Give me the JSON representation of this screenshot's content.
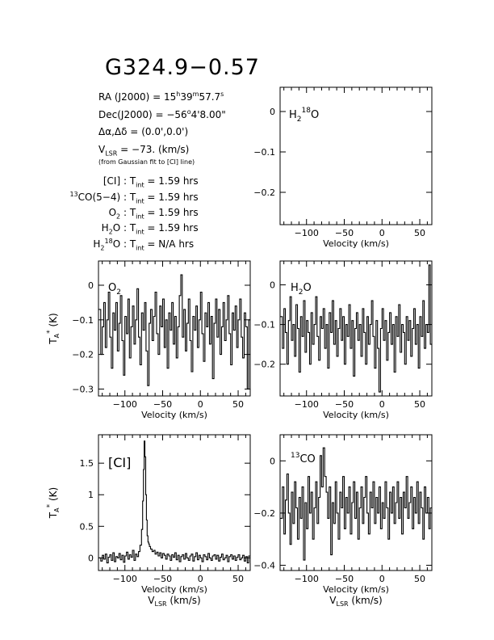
{
  "title": "G324.9−0.57",
  "info": {
    "ra_label": "RA (J2000) =",
    "ra_h": "15",
    "ra_m": "39",
    "ra_s": "57.7",
    "dec_label": "Dec(J2000) =",
    "dec_deg": "−56",
    "dec_rest": "4'8.00\"",
    "offset_label": "Δα,Δδ =",
    "offset_value": "(0.0',0.0')",
    "vlsr_label": "V",
    "vlsr_sub": "LSR",
    "vlsr_value": "= −73. (km/s)",
    "vlsr_note": "(from Gaussian fit to [CI] line)",
    "tint_rows": [
      {
        "pre": "",
        "sup": "",
        "name": "[CI]",
        "sub": "",
        "post": "",
        "value": "1.59 hrs"
      },
      {
        "pre": "",
        "sup": "13",
        "name": "CO(5−4)",
        "sub": "",
        "post": "",
        "value": "1.59 hrs"
      },
      {
        "pre": "O",
        "sup": "",
        "name": "",
        "sub": "2",
        "post": "",
        "value": "1.59 hrs"
      },
      {
        "pre": "H",
        "sup": "",
        "name": "",
        "sub": "2",
        "post": "O",
        "value": "1.59 hrs"
      },
      {
        "pre": "H",
        "sup": "18",
        "name": "",
        "sub": "2",
        "post": "O",
        "value": "N/A hrs"
      }
    ],
    "tint_label": "T",
    "tint_sub": "int",
    "tint_eq": "="
  },
  "axis_text": {
    "xlabel": "Velocity (km/s)",
    "xlabel2": "V",
    "xlabel2_sub": "LSR",
    "xlabel2_rest": " (km/s)",
    "ylabel": "T",
    "ylabel_sub": "A",
    "ylabel_sup": "*",
    "ylabel_rest": " (K)"
  },
  "chart_data": [
    {
      "id": "h218o",
      "type": "line",
      "label": "H218O",
      "label_parts": {
        "a": "H",
        "sub": "2",
        "sup": "18",
        "b": "O"
      },
      "xlim": [
        -135,
        66
      ],
      "ylim": [
        -0.28,
        0.06
      ],
      "xticks": [
        -100,
        -50,
        0,
        50
      ],
      "yticks": [
        0,
        -0.1,
        -0.2
      ],
      "yticklabels": [
        "0",
        "−0.1",
        "−0.2"
      ],
      "show_ylabel": false,
      "show_vlsr": false,
      "x": [],
      "y": []
    },
    {
      "id": "o2",
      "type": "line",
      "label": "O2",
      "label_parts": {
        "a": "O",
        "sub": "2",
        "sup": "",
        "b": ""
      },
      "xlim": [
        -135,
        66
      ],
      "ylim": [
        -0.32,
        0.07
      ],
      "xticks": [
        -100,
        -50,
        0,
        50
      ],
      "yticks": [
        0,
        -0.1,
        -0.2,
        -0.3
      ],
      "yticklabels": [
        "0",
        "−0.1",
        "−0.2",
        "−0.3"
      ],
      "show_ylabel": true,
      "show_vlsr": false,
      "x": [
        -133,
        -131,
        -129,
        -127,
        -125,
        -123,
        -121,
        -119,
        -117,
        -115,
        -113,
        -111,
        -109,
        -107,
        -105,
        -103,
        -101,
        -99,
        -97,
        -95,
        -93,
        -91,
        -89,
        -87,
        -85,
        -83,
        -81,
        -79,
        -77,
        -75,
        -73,
        -71,
        -69,
        -67,
        -65,
        -63,
        -61,
        -59,
        -57,
        -55,
        -53,
        -51,
        -49,
        -47,
        -45,
        -43,
        -41,
        -39,
        -37,
        -35,
        -33,
        -31,
        -29,
        -27,
        -25,
        -23,
        -21,
        -19,
        -17,
        -15,
        -13,
        -11,
        -9,
        -7,
        -5,
        -3,
        -1,
        1,
        3,
        5,
        7,
        9,
        11,
        13,
        15,
        17,
        19,
        21,
        23,
        25,
        27,
        29,
        31,
        33,
        35,
        37,
        39,
        41,
        43,
        45,
        47,
        49,
        51,
        53,
        55,
        57,
        59,
        61,
        63,
        65
      ],
      "y": [
        -0.07,
        -0.2,
        -0.12,
        -0.05,
        -0.18,
        -0.1,
        -0.02,
        -0.15,
        -0.24,
        -0.08,
        -0.13,
        -0.05,
        -0.19,
        -0.11,
        -0.03,
        -0.16,
        -0.26,
        -0.09,
        -0.14,
        -0.04,
        -0.21,
        -0.12,
        -0.06,
        -0.17,
        -0.1,
        -0.01,
        -0.15,
        -0.23,
        -0.08,
        -0.13,
        -0.05,
        -0.19,
        -0.29,
        -0.11,
        -0.07,
        -0.16,
        -0.09,
        -0.02,
        -0.14,
        -0.2,
        -0.06,
        -0.12,
        -0.04,
        -0.18,
        -0.1,
        -0.24,
        -0.08,
        -0.13,
        -0.05,
        -0.17,
        -0.09,
        -0.21,
        -0.12,
        -0.03,
        0.03,
        -0.15,
        -0.07,
        -0.19,
        -0.11,
        -0.04,
        -0.16,
        -0.25,
        -0.09,
        -0.13,
        -0.06,
        -0.18,
        -0.1,
        -0.02,
        -0.14,
        -0.22,
        -0.08,
        -0.12,
        -0.05,
        -0.17,
        -0.09,
        -0.27,
        -0.11,
        -0.04,
        -0.15,
        -0.07,
        -0.2,
        -0.12,
        -0.05,
        -0.16,
        -0.1,
        -0.03,
        -0.14,
        -0.23,
        -0.08,
        -0.13,
        -0.06,
        -0.18,
        -0.1,
        -0.04,
        -0.15,
        -0.21,
        -0.08,
        -0.12,
        -0.3,
        -0.1
      ]
    },
    {
      "id": "h2o",
      "type": "line",
      "label": "H2O",
      "label_parts": {
        "a": "H",
        "sub": "2",
        "sup": "",
        "b": "O"
      },
      "xlim": [
        -135,
        66
      ],
      "ylim": [
        -0.28,
        0.06
      ],
      "xticks": [
        -100,
        -50,
        0,
        50
      ],
      "yticks": [
        0,
        -0.1,
        -0.2
      ],
      "yticklabels": [
        "0",
        "−0.1",
        "−0.2"
      ],
      "show_ylabel": false,
      "show_vlsr": false,
      "x": [
        -133,
        -131,
        -129,
        -127,
        -125,
        -123,
        -121,
        -119,
        -117,
        -115,
        -113,
        -111,
        -109,
        -107,
        -105,
        -103,
        -101,
        -99,
        -97,
        -95,
        -93,
        -91,
        -89,
        -87,
        -85,
        -83,
        -81,
        -79,
        -77,
        -75,
        -73,
        -71,
        -69,
        -67,
        -65,
        -63,
        -61,
        -59,
        -57,
        -55,
        -53,
        -51,
        -49,
        -47,
        -45,
        -43,
        -41,
        -39,
        -37,
        -35,
        -33,
        -31,
        -29,
        -27,
        -25,
        -23,
        -21,
        -19,
        -17,
        -15,
        -13,
        -11,
        -9,
        -7,
        -5,
        -3,
        -1,
        1,
        3,
        5,
        7,
        9,
        11,
        13,
        15,
        17,
        19,
        21,
        23,
        25,
        27,
        29,
        31,
        33,
        35,
        37,
        39,
        41,
        43,
        45,
        47,
        49,
        51,
        53,
        55,
        57,
        59,
        61,
        63,
        65
      ],
      "y": [
        -0.08,
        -0.16,
        -0.06,
        -0.12,
        -0.2,
        -0.09,
        -0.03,
        -0.14,
        -0.1,
        -0.18,
        -0.05,
        -0.11,
        -0.22,
        -0.08,
        -0.13,
        -0.04,
        -0.17,
        -0.09,
        -0.12,
        -0.2,
        -0.07,
        -0.15,
        -0.1,
        -0.03,
        -0.13,
        -0.19,
        -0.08,
        -0.11,
        -0.06,
        -0.16,
        -0.1,
        -0.21,
        -0.07,
        -0.12,
        -0.04,
        -0.15,
        -0.09,
        -0.18,
        -0.11,
        -0.06,
        -0.14,
        -0.08,
        -0.2,
        -0.1,
        -0.13,
        -0.05,
        -0.16,
        -0.09,
        -0.23,
        -0.11,
        -0.07,
        -0.14,
        -0.1,
        -0.18,
        -0.06,
        -0.12,
        -0.2,
        -0.08,
        -0.15,
        -0.1,
        -0.04,
        -0.13,
        -0.21,
        -0.09,
        -0.16,
        -0.27,
        -0.11,
        -0.06,
        -0.14,
        -0.09,
        -0.19,
        -0.12,
        -0.07,
        -0.15,
        -0.1,
        -0.22,
        -0.08,
        -0.13,
        -0.05,
        -0.17,
        -0.1,
        -0.12,
        -0.2,
        -0.08,
        -0.14,
        -0.09,
        -0.18,
        -0.11,
        -0.06,
        -0.15,
        -0.1,
        -0.21,
        -0.08,
        -0.13,
        -0.04,
        -0.16,
        -0.1,
        -0.12,
        0.05,
        -0.15
      ]
    },
    {
      "id": "ci",
      "type": "line",
      "label": "[CI]",
      "label_parts": {
        "a": "[CI]",
        "sub": "",
        "sup": "",
        "b": ""
      },
      "xlim": [
        -135,
        66
      ],
      "ylim": [
        -0.2,
        1.95
      ],
      "xticks": [
        -100,
        -50,
        0,
        50
      ],
      "yticks": [
        0,
        0.5,
        1,
        1.5
      ],
      "yticklabels": [
        "0",
        "0.5",
        "1",
        "1.5"
      ],
      "show_ylabel": true,
      "show_vlsr": true,
      "x": [
        -133,
        -131,
        -129,
        -127,
        -125,
        -123,
        -121,
        -119,
        -117,
        -115,
        -113,
        -111,
        -109,
        -107,
        -105,
        -103,
        -101,
        -99,
        -97,
        -95,
        -93,
        -91,
        -89,
        -87,
        -85,
        -83,
        -81,
        -79,
        -77,
        -76,
        -75,
        -74,
        -73,
        -72,
        -71,
        -70,
        -69,
        -68,
        -67,
        -65,
        -63,
        -61,
        -59,
        -57,
        -55,
        -53,
        -51,
        -49,
        -47,
        -45,
        -43,
        -41,
        -39,
        -37,
        -35,
        -33,
        -31,
        -29,
        -27,
        -25,
        -23,
        -21,
        -19,
        -17,
        -15,
        -13,
        -11,
        -9,
        -7,
        -5,
        -3,
        -1,
        1,
        3,
        5,
        7,
        9,
        11,
        13,
        15,
        17,
        19,
        21,
        23,
        25,
        27,
        29,
        31,
        33,
        35,
        37,
        39,
        41,
        43,
        45,
        47,
        49,
        51,
        53,
        55,
        57,
        59,
        61,
        63,
        65
      ],
      "y": [
        0.0,
        -0.05,
        0.04,
        -0.02,
        0.06,
        -0.08,
        0.01,
        0.05,
        -0.04,
        0.08,
        -0.06,
        0.02,
        0.0,
        0.07,
        -0.03,
        0.04,
        -0.07,
        0.03,
        0.09,
        -0.02,
        0.05,
        0.01,
        0.12,
        -0.04,
        0.06,
        0.02,
        0.1,
        0.2,
        0.45,
        0.9,
        1.4,
        1.85,
        1.6,
        1.0,
        0.6,
        0.35,
        0.25,
        0.22,
        0.18,
        0.14,
        0.1,
        0.12,
        0.06,
        0.09,
        0.03,
        0.08,
        0.0,
        0.07,
        0.04,
        -0.02,
        0.06,
        0.03,
        -0.04,
        0.05,
        0.01,
        0.08,
        -0.03,
        0.04,
        -0.06,
        0.02,
        0.05,
        -0.02,
        0.07,
        0.0,
        -0.04,
        0.03,
        0.06,
        -0.05,
        0.02,
        0.08,
        -0.03,
        0.04,
        0.0,
        -0.06,
        0.05,
        0.02,
        -0.03,
        0.07,
        0.0,
        -0.04,
        0.03,
        0.05,
        -0.02,
        0.04,
        -0.05,
        0.01,
        0.06,
        -0.03,
        0.0,
        0.04,
        -0.06,
        0.02,
        0.05,
        -0.02,
        0.03,
        -0.04,
        0.01,
        0.05,
        -0.03,
        0.0,
        0.04,
        -0.05,
        0.02,
        -0.08,
        0.03
      ]
    },
    {
      "id": "co13",
      "type": "line",
      "label": "13CO",
      "label_parts": {
        "a": "",
        "sub": "",
        "sup": "13",
        "b": "CO"
      },
      "xlim": [
        -135,
        66
      ],
      "ylim": [
        -0.42,
        0.1
      ],
      "xticks": [
        -100,
        -50,
        0,
        50
      ],
      "yticks": [
        0,
        -0.2,
        -0.4
      ],
      "yticklabels": [
        "0",
        "−0.2",
        "−0.4"
      ],
      "show_ylabel": false,
      "show_vlsr": true,
      "x": [
        -133,
        -131,
        -129,
        -127,
        -125,
        -123,
        -121,
        -119,
        -117,
        -115,
        -113,
        -111,
        -109,
        -107,
        -105,
        -103,
        -101,
        -99,
        -97,
        -95,
        -93,
        -91,
        -89,
        -87,
        -85,
        -83,
        -81,
        -79,
        -77,
        -75,
        -73,
        -71,
        -69,
        -67,
        -65,
        -63,
        -61,
        -59,
        -57,
        -55,
        -53,
        -51,
        -49,
        -47,
        -45,
        -43,
        -41,
        -39,
        -37,
        -35,
        -33,
        -31,
        -29,
        -27,
        -25,
        -23,
        -21,
        -19,
        -17,
        -15,
        -13,
        -11,
        -9,
        -7,
        -5,
        -3,
        -1,
        1,
        3,
        5,
        7,
        9,
        11,
        13,
        15,
        17,
        19,
        21,
        23,
        25,
        27,
        29,
        31,
        33,
        35,
        37,
        39,
        41,
        43,
        45,
        47,
        49,
        51,
        53,
        55,
        57,
        59,
        61,
        63,
        65
      ],
      "y": [
        -0.22,
        -0.1,
        -0.28,
        -0.15,
        -0.05,
        -0.2,
        -0.32,
        -0.12,
        -0.24,
        -0.08,
        -0.18,
        -0.3,
        -0.14,
        -0.22,
        -0.1,
        -0.38,
        -0.16,
        -0.26,
        -0.06,
        -0.2,
        -0.12,
        -0.3,
        -0.18,
        -0.08,
        -0.24,
        -0.14,
        0.02,
        -0.1,
        0.05,
        -0.06,
        -0.12,
        -0.22,
        -0.1,
        -0.36,
        -0.16,
        -0.24,
        -0.08,
        -0.2,
        -0.3,
        -0.12,
        -0.18,
        -0.06,
        -0.26,
        -0.14,
        -0.2,
        -0.1,
        -0.28,
        -0.16,
        -0.08,
        -0.22,
        -0.12,
        -0.3,
        -0.18,
        -0.1,
        -0.24,
        -0.14,
        -0.06,
        -0.2,
        -0.28,
        -0.12,
        -0.18,
        -0.08,
        -0.24,
        -0.14,
        -0.2,
        -0.1,
        -0.26,
        -0.16,
        -0.22,
        -0.08,
        -0.18,
        -0.3,
        -0.12,
        -0.2,
        -0.1,
        -0.24,
        -0.16,
        -0.08,
        -0.22,
        -0.14,
        -0.28,
        -0.12,
        -0.18,
        -0.06,
        -0.22,
        -0.16,
        -0.1,
        -0.26,
        -0.14,
        -0.2,
        -0.08,
        -0.24,
        -0.12,
        -0.18,
        -0.3,
        -0.1,
        -0.2,
        -0.14,
        -0.26,
        -0.18
      ]
    }
  ]
}
